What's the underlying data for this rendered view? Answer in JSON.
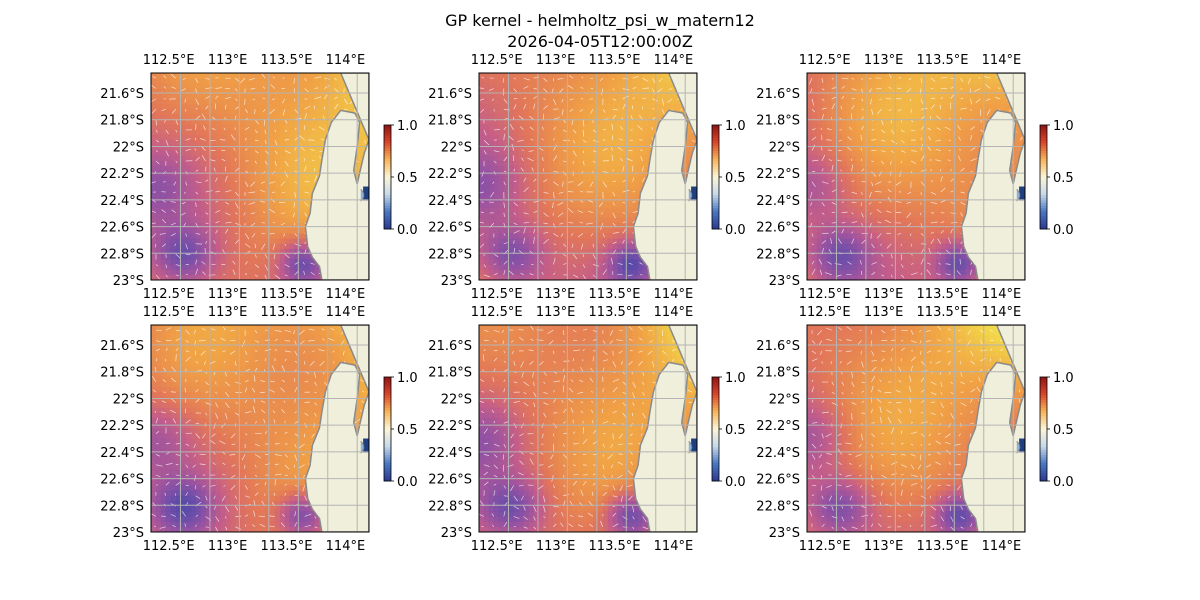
{
  "figure": {
    "title_line1": "GP kernel - helmholtz_psi_w_matern12",
    "title_line2": "2026-04-05T12:00:00Z"
  },
  "colors": {
    "land": "#efefdb",
    "coast": "#8a8a8a",
    "ocean_edge": "#8fb0d8",
    "grid": "#b4b4b4",
    "quiver": "#ffffff"
  },
  "chart_data": {
    "type": "heatmap",
    "layout": {
      "rows": 2,
      "cols": 3
    },
    "map_extent": {
      "lon": [
        112.35,
        114.2
      ],
      "lat": [
        -23.0,
        -21.45
      ]
    },
    "x_ticks": [
      112.5,
      113.0,
      113.5,
      114.0
    ],
    "x_tick_labels": [
      "112.5°E",
      "113°E",
      "113.5°E",
      "114°E"
    ],
    "y_ticks": [
      -21.6,
      -21.8,
      -22.0,
      -22.2,
      -22.4,
      -22.6,
      -22.8,
      -23.0
    ],
    "y_tick_labels": [
      "21.6°S",
      "21.8°S",
      "22°S",
      "22.2°S",
      "22.4°S",
      "22.6°S",
      "22.8°S",
      "23°S"
    ],
    "colorbar": {
      "range": [
        0.0,
        1.0
      ],
      "ticks": [
        0.0,
        0.5,
        1.0
      ],
      "tick_labels": [
        "0.0",
        "0.5",
        "1.0"
      ],
      "colormap": "diverging blue-white-red"
    },
    "field_colormap": [
      "#3b3fa0",
      "#6a4aa8",
      "#9a4f9e",
      "#c65a86",
      "#e67553",
      "#f4a03f",
      "#f7d642",
      "#eef15a"
    ],
    "panels": [
      {
        "seed": 1,
        "north_east_intensity": 1.0
      },
      {
        "seed": 2,
        "north_east_intensity": 0.95
      },
      {
        "seed": 3,
        "north_east_intensity": 1.0
      },
      {
        "seed": 4,
        "north_east_intensity": 1.0
      },
      {
        "seed": 5,
        "north_east_intensity": 0.98
      },
      {
        "seed": 6,
        "north_east_intensity": 1.0
      }
    ]
  }
}
